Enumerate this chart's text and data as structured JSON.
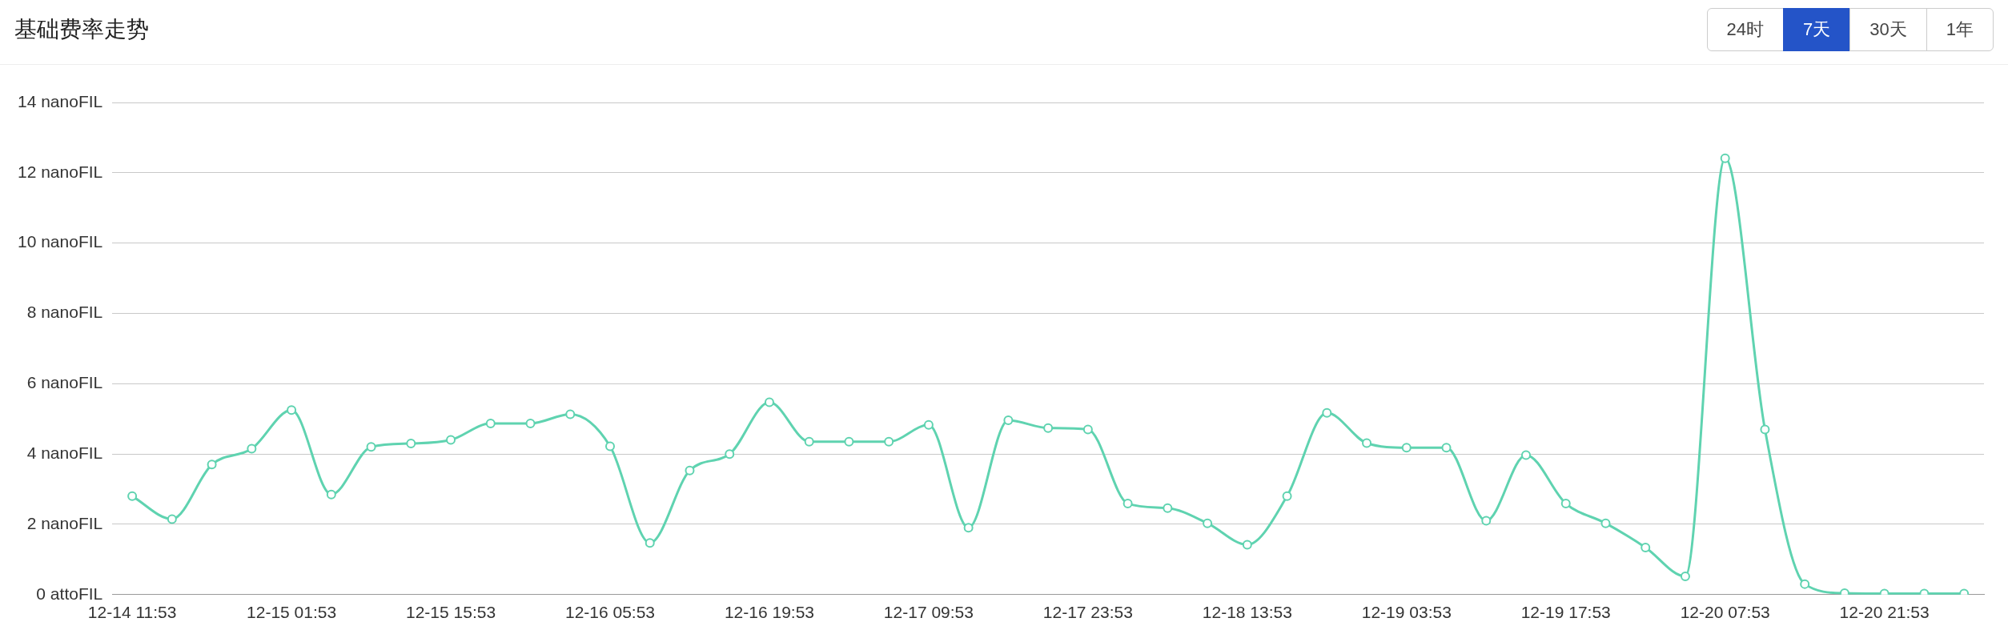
{
  "chart_data": {
    "type": "line",
    "title": "基础费率走势",
    "annotations": [
      "24时",
      "7天",
      "30天",
      "1年"
    ],
    "categories": [
      "12-14 11:53",
      null,
      null,
      null,
      "12-15 01:53",
      null,
      null,
      null,
      "12-15 15:53",
      null,
      null,
      null,
      "12-16 05:53",
      null,
      null,
      null,
      "12-16 19:53",
      null,
      null,
      null,
      "12-17 09:53",
      null,
      null,
      null,
      "12-17 23:53",
      null,
      null,
      null,
      "12-18 13:53",
      null,
      null,
      null,
      "12-19 03:53",
      null,
      null,
      null,
      "12-19 17:53",
      null,
      null,
      null,
      "12-20 07:53",
      null,
      null,
      null,
      "12-20 21:53",
      null,
      null
    ],
    "series": [
      {
        "color": "#5fd3b0",
        "values": [
          2.8,
          2.15,
          3.7,
          4.15,
          5.25,
          2.85,
          4.2,
          4.3,
          4.4,
          4.87,
          4.87,
          5.13,
          4.22,
          1.47,
          3.53,
          4.0,
          5.47,
          4.35,
          4.35,
          4.35,
          4.83,
          1.9,
          4.96,
          4.74,
          4.7,
          2.59,
          2.46,
          2.03,
          1.42,
          2.8,
          5.17,
          4.31,
          4.18,
          4.18,
          2.1,
          3.97,
          2.59,
          2.03,
          1.34,
          0.52,
          12.41,
          4.7,
          0.3,
          0.04,
          0.03,
          0.03,
          0.03
        ]
      }
    ],
    "ylim": [
      0,
      14
    ],
    "yticks": [
      {
        "value": 0,
        "label": "0 attoFIL"
      },
      {
        "value": 2,
        "label": "2 nanoFIL"
      },
      {
        "value": 4,
        "label": "4 nanoFIL"
      },
      {
        "value": 6,
        "label": "6 nanoFIL"
      },
      {
        "value": 8,
        "label": "8 nanoFIL"
      },
      {
        "value": 10,
        "label": "10 nanoFIL"
      },
      {
        "value": 12,
        "label": "12 nanoFIL"
      },
      {
        "value": 14,
        "label": "14 nanoFIL"
      }
    ],
    "grid": "y",
    "legend": false,
    "marker": "circle",
    "line_style": "solid"
  }
}
